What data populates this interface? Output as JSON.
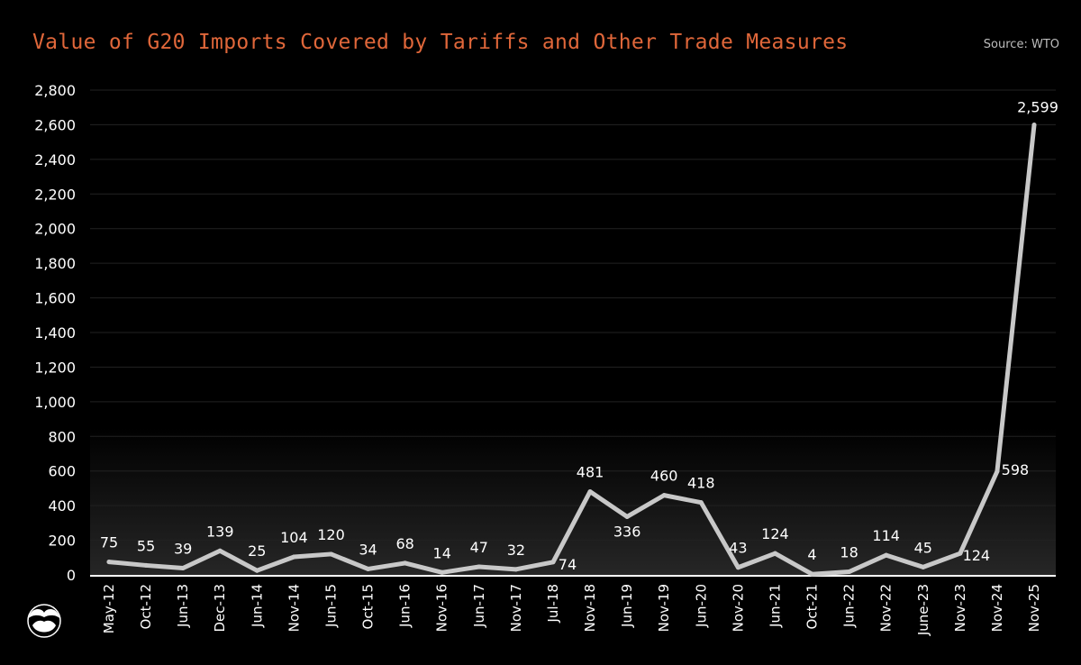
{
  "title": "Value of G20 Imports Covered by Tariffs and Other Trade Measures",
  "source": "Source: WTO",
  "colors": {
    "title": "#e0673a",
    "line": "#c8c8c8",
    "background": "#000000",
    "text": "#ffffff"
  },
  "logo_icon": "brand-logo-icon",
  "chart_data": {
    "type": "line",
    "title": "Value of G20 Imports Covered by Tariffs and Other Trade Measures",
    "xlabel": "",
    "ylabel": "",
    "ylim": [
      0,
      2800
    ],
    "yticks": [
      "0",
      "200",
      "400",
      "600",
      "800",
      "1,000",
      "1,200",
      "1,400",
      "1,600",
      "1,800",
      "2,000",
      "2,200",
      "2,400",
      "2,600",
      "2,800"
    ],
    "grid": true,
    "categories": [
      "May-12",
      "Oct-12",
      "Jun-13",
      "Dec-13",
      "Jun-14",
      "Nov-14",
      "Jun-15",
      "Oct-15",
      "Jun-16",
      "Nov-16",
      "Jun-17",
      "Nov-17",
      "Jul-18",
      "Nov-18",
      "Jun-19",
      "Nov-19",
      "Jun-20",
      "Nov-20",
      "Jun-21",
      "Oct-21",
      "Jun-22",
      "Nov-22",
      "June-23",
      "Nov-23",
      "Nov-24",
      "Nov-25"
    ],
    "values": [
      75,
      55,
      39,
      139,
      25,
      104,
      120,
      34,
      68,
      14,
      47,
      32,
      74,
      481,
      336,
      460,
      418,
      43,
      124,
      4,
      18,
      114,
      45,
      124,
      598,
      2599
    ],
    "data_labels": [
      "75",
      "55",
      "39",
      "139",
      "25",
      "104",
      "120",
      "34",
      "68",
      "14",
      "47",
      "32",
      "74",
      "481",
      "336",
      "460",
      "418",
      "43",
      "124",
      "4",
      "18",
      "114",
      "45",
      "124",
      "598",
      "2,599"
    ]
  }
}
